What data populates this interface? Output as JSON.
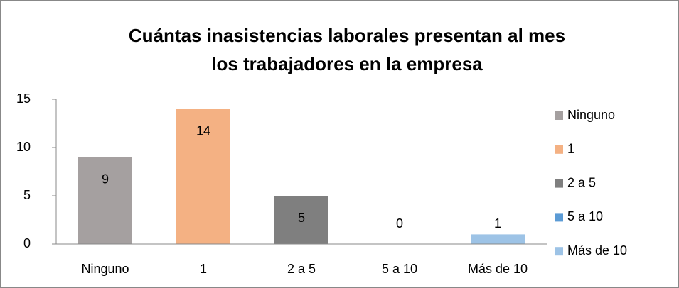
{
  "chart_data": {
    "type": "bar",
    "title": [
      "Cuántas inasistencias laborales presentan al mes",
      "los trabajadores en la empresa"
    ],
    "categories": [
      "Ninguno",
      "1",
      "2 a 5",
      "5 a 10",
      "Más de 10"
    ],
    "values": [
      9,
      14,
      5,
      0,
      1
    ],
    "colors": [
      "#a5a0a0",
      "#f4b183",
      "#7f7f7f",
      "#5b9bd5",
      "#9dc3e6"
    ],
    "ylim": [
      0,
      15
    ],
    "yticks": [
      0,
      5,
      10,
      15
    ],
    "grid": false,
    "legend": "right"
  }
}
